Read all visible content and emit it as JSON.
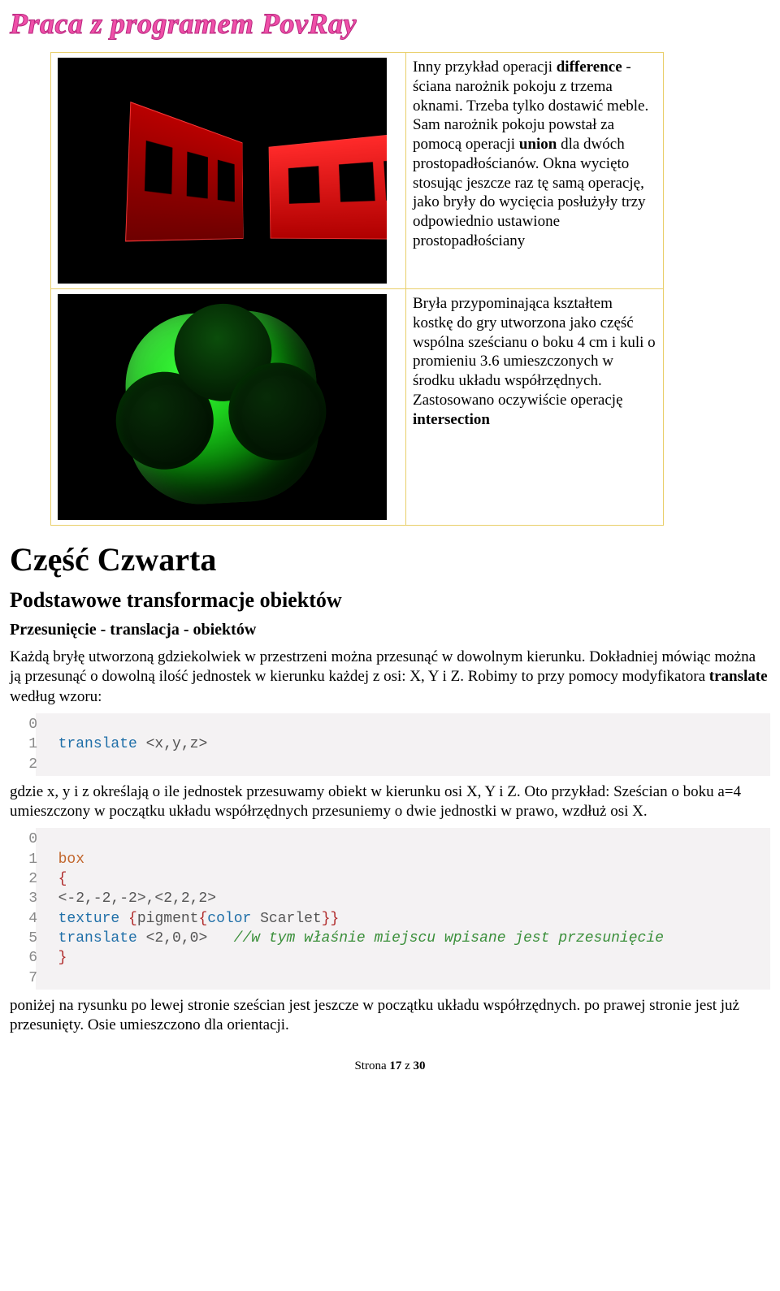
{
  "header": {
    "title": "Praca z programem PovRay"
  },
  "row1": {
    "pre1": "Inny przykład operacji ",
    "b1": "difference",
    "post1": " - ściana narożnik pokoju z trzema oknami. Trzeba tylko dostawić meble. Sam narożnik pokoju powstał za pomocą operacji ",
    "b2": "union",
    "post2": " dla dwóch prostopadłościanów. Okna wycięto stosując jeszcze raz tę samą operację, jako bryły do wycięcia posłużyły trzy odpowiednio ustawione prostopadłościany"
  },
  "row2": {
    "p1": "Bryła przypominająca kształtem kostkę do gry utworzona jako część wspólna sześcianu o boku 4 cm i kuli o promieniu 3.6 umieszczonych w środku układu współrzędnych. Zastosowano oczywiście operację ",
    "b1": "intersection"
  },
  "section": {
    "title": "Część Czwarta"
  },
  "subsection": {
    "title": "Podstawowe transformacje obiektów"
  },
  "subsub": {
    "title": "Przesunięcie - translacja - obiektów"
  },
  "para1": {
    "a": "Każdą bryłę utworzoną gdziekolwiek w przestrzeni można przesunąć w dowolnym kierunku. Dokładniej mówiąc można ją przesunąć o dowolną ilość jednostek w kierunku każdej z osi: X, Y i Z. Robimy to przy pomocy modyfikatora ",
    "b": "translate",
    "c": " według wzoru:"
  },
  "code1": {
    "lines": [
      {
        "n": "0",
        "html": ""
      },
      {
        "n": "1",
        "html": "  <span class=\"type\">translate</span> &lt;x,y,z&gt;"
      },
      {
        "n": "2",
        "html": ""
      }
    ]
  },
  "para2": "gdzie x, y i z określają o ile jednostek przesuwamy obiekt w kierunku osi X, Y i Z. Oto przykład: Sześcian o boku a=4 umieszczony w początku układu współrzędnych przesuniemy o dwie jednostki w prawo, wzdłuż osi X.",
  "code2": {
    "lines": [
      {
        "n": "0",
        "html": ""
      },
      {
        "n": "1",
        "html": "  <span class=\"kw\">box</span>"
      },
      {
        "n": "2",
        "html": "  <span class=\"br\">{</span>"
      },
      {
        "n": "3",
        "html": "  &lt;-2,-2,-2&gt;,&lt;2,2,2&gt;"
      },
      {
        "n": "4",
        "html": "  <span class=\"type\">texture</span> <span class=\"br\">{</span>pigment<span class=\"br\">{</span><span class=\"type\">color</span> Scarlet<span class=\"br\">}}</span>"
      },
      {
        "n": "5",
        "html": "  <span class=\"type\">translate</span> &lt;2,0,0&gt;   <span class=\"cmt\">//w tym właśnie miejscu wpisane jest przesunięcie</span>"
      },
      {
        "n": "6",
        "html": "  <span class=\"br\">}</span>"
      },
      {
        "n": "7",
        "html": ""
      }
    ]
  },
  "para3": "poniżej na rysunku po lewej stronie sześcian jest jeszcze w początku układu współrzędnych. po prawej stronie jest już przesunięty. Osie umieszczono dla orientacji.",
  "footer": {
    "a": "Strona ",
    "b": "17",
    "c": " z ",
    "d": "30"
  },
  "colors": {
    "header_pink": "#ef4fa8",
    "table_border": "#e9cf6b",
    "code_bg": "#f4f2f3",
    "code_keyword": "#c2662c",
    "code_type": "#1f6fa8",
    "code_comment": "#3a8f3a",
    "render_bg": "#000000",
    "room_red": "#d10000",
    "dice_green": "#18b818"
  }
}
